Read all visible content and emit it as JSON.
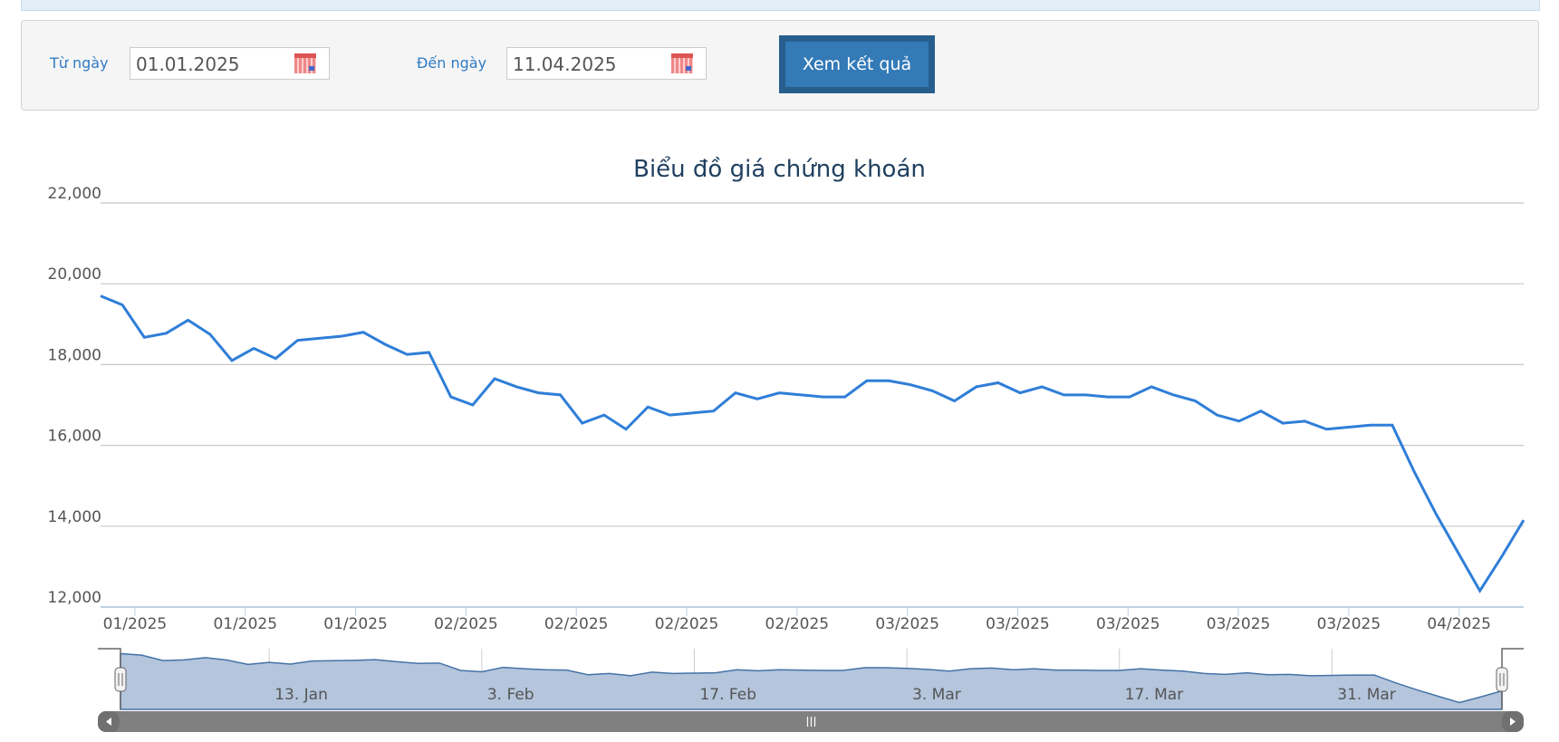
{
  "filter": {
    "from_label": "Từ ngày",
    "from_value": "01.01.2025",
    "to_label": "Đến ngày",
    "to_value": "11.04.2025",
    "submit_label": "Xem kết quả"
  },
  "chart_data": {
    "type": "line",
    "title": "Biểu đồ giá chứng khoán",
    "ylim": [
      12000,
      22000
    ],
    "yticks": [
      "12,000",
      "14,000",
      "16,000",
      "18,000",
      "20,000",
      "22,000"
    ],
    "xtick_labels": [
      "01/2025",
      "01/2025",
      "01/2025",
      "02/2025",
      "02/2025",
      "02/2025",
      "02/2025",
      "03/2025",
      "03/2025",
      "03/2025",
      "03/2025",
      "03/2025",
      "04/2025"
    ],
    "grid": true,
    "color": "#2f7ed8",
    "x": [
      "2025-01-02",
      "2025-01-03",
      "2025-01-06",
      "2025-01-07",
      "2025-01-08",
      "2025-01-09",
      "2025-01-10",
      "2025-01-13",
      "2025-01-14",
      "2025-01-15",
      "2025-01-16",
      "2025-01-17",
      "2025-01-20",
      "2025-01-21",
      "2025-01-22",
      "2025-01-23",
      "2025-01-24",
      "2025-02-03",
      "2025-02-04",
      "2025-02-05",
      "2025-02-06",
      "2025-02-07",
      "2025-02-10",
      "2025-02-11",
      "2025-02-12",
      "2025-02-13",
      "2025-02-14",
      "2025-02-17",
      "2025-02-18",
      "2025-02-19",
      "2025-02-20",
      "2025-02-21",
      "2025-02-24",
      "2025-02-25",
      "2025-02-26",
      "2025-02-27",
      "2025-02-28",
      "2025-03-03",
      "2025-03-04",
      "2025-03-05",
      "2025-03-06",
      "2025-03-07",
      "2025-03-10",
      "2025-03-11",
      "2025-03-12",
      "2025-03-13",
      "2025-03-14",
      "2025-03-17",
      "2025-03-18",
      "2025-03-19",
      "2025-03-20",
      "2025-03-21",
      "2025-03-24",
      "2025-03-25",
      "2025-03-26",
      "2025-03-27",
      "2025-03-28",
      "2025-03-31",
      "2025-04-01",
      "2025-04-02",
      "2025-04-03",
      "2025-04-04",
      "2025-04-08",
      "2025-04-09",
      "2025-04-10",
      "2025-04-11"
    ],
    "values": [
      19700,
      19475,
      18675,
      18775,
      19100,
      18750,
      18100,
      18400,
      18150,
      18600,
      18650,
      18700,
      18800,
      18500,
      18250,
      18300,
      17200,
      17000,
      17650,
      17450,
      17300,
      17250,
      16550,
      16750,
      16400,
      16950,
      16750,
      16800,
      16850,
      17300,
      17150,
      17300,
      17250,
      17200,
      17200,
      17600,
      17600,
      17500,
      17350,
      17100,
      17450,
      17550,
      17300,
      17450,
      17250,
      17250,
      17200,
      17200,
      17450,
      17250,
      17100,
      16750,
      16600,
      16850,
      16550,
      16600,
      16400,
      16450,
      16500,
      16500,
      15350,
      14300,
      13350,
      12400,
      13250,
      14150
    ],
    "navigator_labels": [
      "13. Jan",
      "3. Feb",
      "17. Feb",
      "3. Mar",
      "17. Mar",
      "31. Mar"
    ]
  }
}
